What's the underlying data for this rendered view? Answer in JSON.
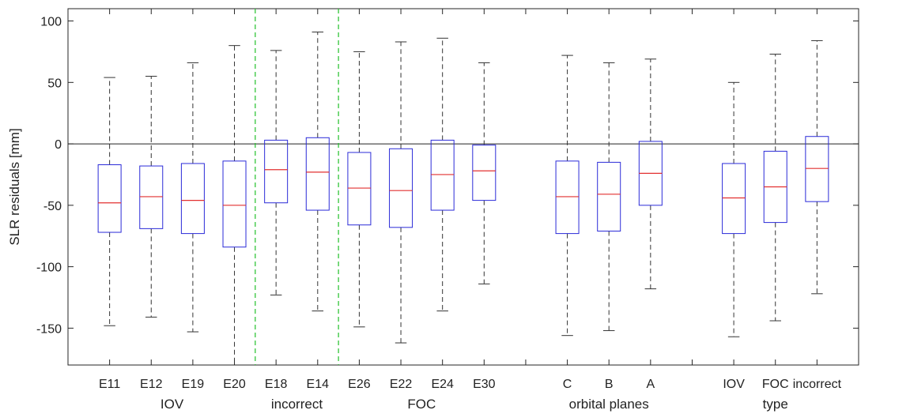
{
  "chart_data": {
    "type": "box",
    "title": "",
    "xlabel": "",
    "ylabel": "SLR residuals [mm]",
    "ylim": [
      -180,
      110
    ],
    "yticks": [
      -150,
      -100,
      -50,
      0,
      50,
      100
    ],
    "grid": false,
    "zero_line": 0,
    "colors": {
      "box": "#2b2bd8",
      "median": "#e23030",
      "whisker": "#333333",
      "separator": "#22c02a",
      "axis": "#262626"
    },
    "boxes": [
      {
        "label": "E11",
        "whisker_low": -148,
        "q1": -72,
        "median": -48,
        "q3": -17,
        "whisker_high": 54
      },
      {
        "label": "E12",
        "whisker_low": -141,
        "q1": -69,
        "median": -43,
        "q3": -18,
        "whisker_high": 55
      },
      {
        "label": "E19",
        "whisker_low": -153,
        "q1": -73,
        "median": -46,
        "q3": -16,
        "whisker_high": 66
      },
      {
        "label": "E20",
        "whisker_low": -180,
        "q1": -84,
        "median": -50,
        "q3": -14,
        "whisker_high": 80
      },
      {
        "label": "E18",
        "whisker_low": -123,
        "q1": -48,
        "median": -21,
        "q3": 3,
        "whisker_high": 76
      },
      {
        "label": "E14",
        "whisker_low": -136,
        "q1": -54,
        "median": -23,
        "q3": 5,
        "whisker_high": 91
      },
      {
        "label": "E26",
        "whisker_low": -149,
        "q1": -66,
        "median": -36,
        "q3": -7,
        "whisker_high": 75
      },
      {
        "label": "E22",
        "whisker_low": -162,
        "q1": -68,
        "median": -38,
        "q3": -4,
        "whisker_high": 83
      },
      {
        "label": "E24",
        "whisker_low": -136,
        "q1": -54,
        "median": -25,
        "q3": 3,
        "whisker_high": 86
      },
      {
        "label": "E30",
        "whisker_low": -114,
        "q1": -46,
        "median": -22,
        "q3": -1,
        "whisker_high": 66
      },
      {
        "label": "",
        "empty": true
      },
      {
        "label": "C",
        "whisker_low": -156,
        "q1": -73,
        "median": -43,
        "q3": -14,
        "whisker_high": 72
      },
      {
        "label": "B",
        "whisker_low": -152,
        "q1": -71,
        "median": -41,
        "q3": -15,
        "whisker_high": 66
      },
      {
        "label": "A",
        "whisker_low": -118,
        "q1": -50,
        "median": -24,
        "q3": 2,
        "whisker_high": 69
      },
      {
        "label": "",
        "empty": true
      },
      {
        "label": "IOV",
        "whisker_low": -157,
        "q1": -73,
        "median": -44,
        "q3": -16,
        "whisker_high": 50
      },
      {
        "label": "FOC",
        "whisker_low": -144,
        "q1": -64,
        "median": -35,
        "q3": -6,
        "whisker_high": 73
      },
      {
        "label": "incorrect",
        "whisker_low": -122,
        "q1": -47,
        "median": -20,
        "q3": 6,
        "whisker_high": 84
      }
    ],
    "groups": [
      {
        "label": "IOV",
        "from": 1,
        "to": 4
      },
      {
        "label": "incorrect",
        "from": 5,
        "to": 6
      },
      {
        "label": "FOC",
        "from": 7,
        "to": 10
      },
      {
        "label": "orbital planes",
        "from": 12,
        "to": 14
      },
      {
        "label": "type",
        "from": 16,
        "to": 18
      }
    ],
    "separators_after": [
      4,
      6
    ]
  }
}
